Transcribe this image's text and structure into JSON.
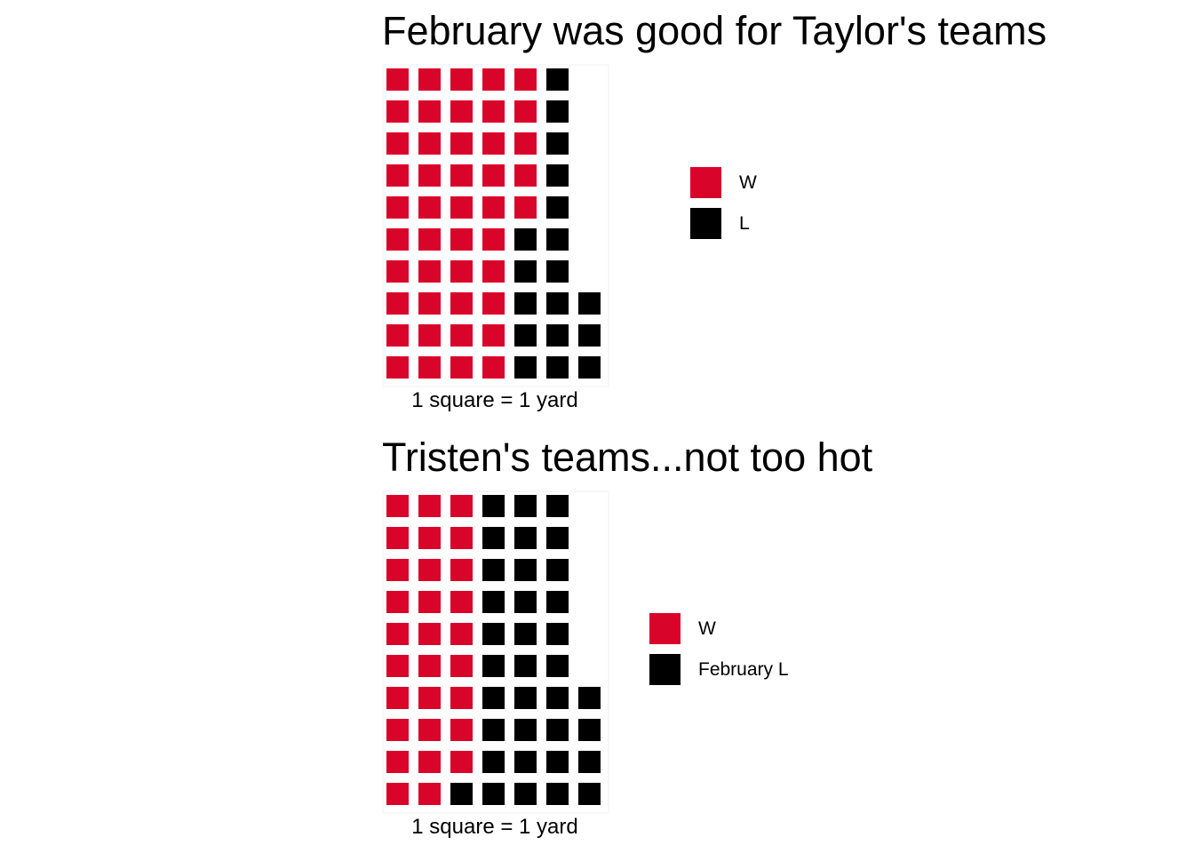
{
  "colors": {
    "W": "#D90429",
    "L": "#000000",
    "panel_background": "#ffffff"
  },
  "chart_data": [
    {
      "type": "waffle",
      "title": "February was good for Taylor's teams",
      "caption": "1 square = 1 yard",
      "rows": 10,
      "fill_order": "column-wise, top to bottom",
      "legend_position": "right",
      "categories": [
        {
          "label": "W",
          "key": "W",
          "count": 45
        },
        {
          "label": "L",
          "key": "L",
          "count": 18
        }
      ],
      "total_squares": 63
    },
    {
      "type": "waffle",
      "title": "Tristen's teams...not too hot",
      "caption": "1 square = 1 yard",
      "rows": 10,
      "fill_order": "column-wise, top to bottom",
      "legend_position": "right",
      "categories": [
        {
          "label": "W",
          "key": "W",
          "count": 29
        },
        {
          "label": "February L",
          "key": "L",
          "count": 35
        }
      ],
      "total_squares": 64
    }
  ]
}
